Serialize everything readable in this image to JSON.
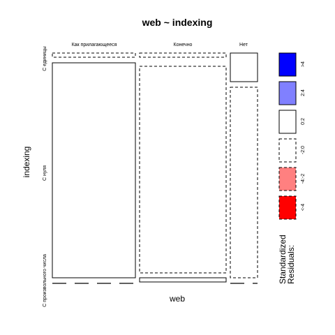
{
  "chart_data": {
    "type": "mosaic",
    "title": "web ~ indexing",
    "xlabel": "web",
    "ylabel": "indexing",
    "x_levels": [
      "Как прилагающееся",
      "Конечно",
      "Нет"
    ],
    "y_levels": [
      "С единицы",
      "С нуля",
      "С произвольного числа"
    ],
    "cells": [
      {
        "x": "Как прилагающееся",
        "y": "С единицы",
        "residual_class": "-2:0"
      },
      {
        "x": "Как прилагающееся",
        "y": "С нуля",
        "residual_class": "0:2"
      },
      {
        "x": "Как прилагающееся",
        "y": "С произвольного числа",
        "residual_class": "-2:0"
      },
      {
        "x": "Конечно",
        "y": "С единицы",
        "residual_class": "-2:0"
      },
      {
        "x": "Конечно",
        "y": "С нуля",
        "residual_class": "-2:0"
      },
      {
        "x": "Конечно",
        "y": "С произвольного числа",
        "residual_class": "0:2"
      },
      {
        "x": "Нет",
        "y": "С единицы",
        "residual_class": "0:2"
      },
      {
        "x": "Нет",
        "y": "С нуля",
        "residual_class": "-2:0"
      },
      {
        "x": "Нет",
        "y": "С произвольного числа",
        "residual_class": "-2:0"
      }
    ],
    "legend": {
      "title_line1": "Standardized",
      "title_line2": "Residuals:",
      "entries": [
        {
          "label": ">4",
          "color": "#0000ff",
          "dashed": false
        },
        {
          "label": "2:4",
          "color": "#8080ff",
          "dashed": false
        },
        {
          "label": "0:2",
          "color": "#ffffff",
          "dashed": false
        },
        {
          "label": "-2:0",
          "color": "#ffffff",
          "dashed": true
        },
        {
          "label": "-4:-2",
          "color": "#ff8080",
          "dashed": true
        },
        {
          "label": "<-4",
          "color": "#ff0000",
          "dashed": true
        }
      ]
    }
  }
}
